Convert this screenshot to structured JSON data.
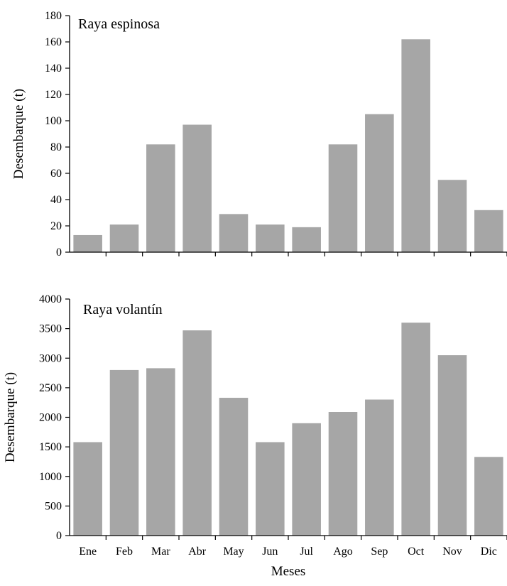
{
  "chart_data": [
    {
      "type": "bar",
      "title": "Raya espinosa",
      "xlabel": "",
      "ylabel": "Desembarque (t)",
      "categories": [
        "Ene",
        "Feb",
        "Mar",
        "Abr",
        "May",
        "Jun",
        "Jul",
        "Ago",
        "Sep",
        "Oct",
        "Nov",
        "Dic"
      ],
      "values": [
        13,
        21,
        82,
        97,
        29,
        21,
        19,
        82,
        105,
        162,
        55,
        32
      ],
      "ylim": [
        0,
        180
      ],
      "yticks": [
        0,
        20,
        40,
        60,
        80,
        100,
        120,
        140,
        160,
        180
      ],
      "grid": false,
      "bar_color": "#a6a6a6"
    },
    {
      "type": "bar",
      "title": "Raya volantín",
      "xlabel": "Meses",
      "ylabel": "Desembarque (t)",
      "categories": [
        "Ene",
        "Feb",
        "Mar",
        "Abr",
        "May",
        "Jun",
        "Jul",
        "Ago",
        "Sep",
        "Oct",
        "Nov",
        "Dic"
      ],
      "values": [
        1580,
        2800,
        2830,
        3470,
        2330,
        1580,
        1900,
        2090,
        2300,
        3600,
        3050,
        1330
      ],
      "ylim": [
        0,
        4000
      ],
      "yticks": [
        0,
        500,
        1000,
        1500,
        2000,
        2500,
        3000,
        3500,
        4000
      ],
      "grid": false,
      "bar_color": "#a6a6a6"
    }
  ]
}
